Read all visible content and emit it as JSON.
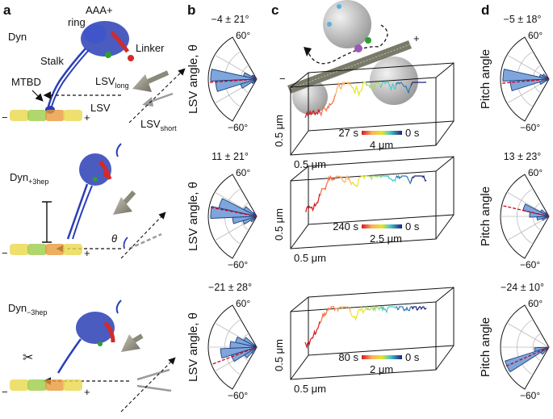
{
  "panels": {
    "a": {
      "letter": "a",
      "rows": [
        {
          "name_base": "Dyn",
          "name_sub": ""
        },
        {
          "name_base": "Dyn",
          "name_sub": "+3hep"
        },
        {
          "name_base": "Dyn",
          "name_sub": "−3hep"
        }
      ],
      "labels": {
        "aaa": "AAA+",
        "ring": "ring",
        "linker": "Linker",
        "stalk": "Stalk",
        "mtbd": "MTBD",
        "lsv": "LSV",
        "lsv_long_base": "LSV",
        "lsv_long_sub": "long",
        "lsv_short_base": "LSV",
        "lsv_short_sub": "short",
        "theta": "θ",
        "minus": "−",
        "plus": "+"
      }
    },
    "b": {
      "letter": "b",
      "ylabel": "LSV angle, θ",
      "tick_top": "60°",
      "tick_bottom": "−60°",
      "plots": [
        {
          "stat": "−4 ± 21°",
          "mean_deg": -4,
          "bins": [
            {
              "deg": 50,
              "v": 0.1
            },
            {
              "deg": 35,
              "v": 0.12
            },
            {
              "deg": 20,
              "v": 0.28
            },
            {
              "deg": 5,
              "v": 0.95
            },
            {
              "deg": -10,
              "v": 0.85
            },
            {
              "deg": -25,
              "v": 0.35
            },
            {
              "deg": -40,
              "v": 0.12
            }
          ]
        },
        {
          "stat": "11 ± 21°",
          "mean_deg": 11,
          "bins": [
            {
              "deg": 50,
              "v": 0.1
            },
            {
              "deg": 35,
              "v": 0.3
            },
            {
              "deg": 20,
              "v": 0.8
            },
            {
              "deg": 5,
              "v": 0.95
            },
            {
              "deg": -10,
              "v": 0.5
            },
            {
              "deg": -25,
              "v": 0.3
            },
            {
              "deg": -40,
              "v": 0.15
            }
          ]
        },
        {
          "stat": "−21 ± 28°",
          "mean_deg": -21,
          "bins": [
            {
              "deg": 35,
              "v": 0.3
            },
            {
              "deg": 20,
              "v": 0.45
            },
            {
              "deg": 5,
              "v": 0.55
            },
            {
              "deg": -10,
              "v": 0.75
            },
            {
              "deg": -25,
              "v": 0.55
            },
            {
              "deg": -40,
              "v": 0.3
            },
            {
              "deg": -55,
              "v": 0.15
            }
          ]
        }
      ]
    },
    "c": {
      "letter": "c",
      "minus": "−",
      "plus": "+",
      "plots": [
        {
          "time_label": "27 s",
          "zero_label": "0 s",
          "xscale": "4 μm",
          "yscale": "0.5 μm",
          "zscale": "0.5 μm"
        },
        {
          "time_label": "240 s",
          "zero_label": "0 s",
          "xscale": "2.5 μm",
          "yscale": "0.5 μm",
          "zscale": "0.5 μm"
        },
        {
          "time_label": "80 s",
          "zero_label": "0 s",
          "xscale": "2 μm",
          "yscale": "0.5 μm",
          "zscale": "0.5 μm"
        }
      ]
    },
    "d": {
      "letter": "d",
      "ylabel": "Pitch angle",
      "tick_top": "60°",
      "tick_bottom": "−60°",
      "plots": [
        {
          "stat": "−5 ± 18°",
          "mean_deg": -5,
          "bins": [
            {
              "deg": 35,
              "v": 0.15
            },
            {
              "deg": 20,
              "v": 0.2
            },
            {
              "deg": 5,
              "v": 0.95
            },
            {
              "deg": -10,
              "v": 0.8
            },
            {
              "deg": -25,
              "v": 0.2
            }
          ]
        },
        {
          "stat": "13 ± 23°",
          "mean_deg": 13,
          "bins": [
            {
              "deg": 50,
              "v": 0.1
            },
            {
              "deg": 35,
              "v": 0.2
            },
            {
              "deg": 20,
              "v": 0.55
            },
            {
              "deg": 5,
              "v": 0.4
            },
            {
              "deg": -10,
              "v": 0.25
            },
            {
              "deg": -25,
              "v": 0.15
            }
          ]
        },
        {
          "stat": "−24 ± 10°",
          "mean_deg": -24,
          "bins": [
            {
              "deg": -10,
              "v": 0.3
            },
            {
              "deg": -25,
              "v": 0.95
            },
            {
              "deg": -40,
              "v": 0.2
            }
          ]
        }
      ]
    }
  },
  "colors": {
    "bar_fill": "#7ea6dc",
    "bar_stroke": "#1f3f7a",
    "mean_line": "#d0021b",
    "protein_blue": "#2a3fb5",
    "linker_red": "#d42a2a",
    "green": "#2ca02c",
    "mt_yellow": "#e8d84a",
    "mt_orange": "#e89a3a",
    "arrow_grey": "#8a8a7a"
  }
}
